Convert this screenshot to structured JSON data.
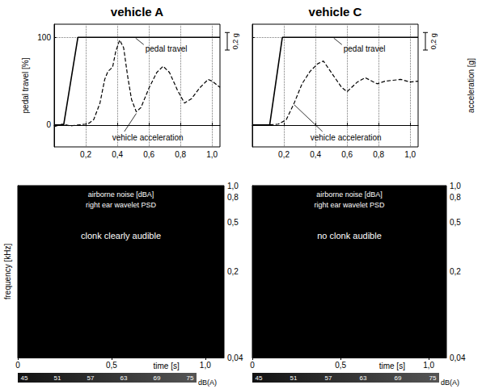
{
  "chart_data": [
    {
      "type": "line",
      "title": "vehicle A",
      "ylabel": "pedal travel [%]",
      "xlim": [
        0,
        1.05
      ],
      "xticks": [
        {
          "value": 0.2,
          "label": "0,2"
        },
        {
          "value": 0.4,
          "label": "0,4"
        },
        {
          "value": 0.6,
          "label": "0,6"
        },
        {
          "value": 0.8,
          "label": "0,8"
        },
        {
          "value": 1,
          "label": "1,0"
        }
      ],
      "ylim": [
        -25,
        115
      ],
      "yticks": [
        0,
        100
      ],
      "y2lim": [
        -0.25,
        1.15
      ],
      "y2ticks": [],
      "grid": true,
      "scale_bar": {
        "value": 0.2,
        "label": "0,2 g"
      },
      "series": [
        {
          "name": "pedal travel",
          "color": "#000000",
          "line_style": "solid",
          "x": [
            0,
            0.06,
            0.15,
            1.05
          ],
          "values": [
            0,
            0,
            100,
            100
          ]
        },
        {
          "name": "vehicle acceleration",
          "axis": "y2",
          "color": "#000000",
          "line_style": "dashed",
          "x": [
            0,
            0.05,
            0.1,
            0.15,
            0.2,
            0.22,
            0.25,
            0.29,
            0.32,
            0.34,
            0.37,
            0.39,
            0.415,
            0.44,
            0.465,
            0.49,
            0.52,
            0.55,
            0.6,
            0.65,
            0.69,
            0.73,
            0.78,
            0.825,
            0.87,
            0.92,
            0.975,
            1.0,
            1.05
          ],
          "values": [
            -0.02,
            0.01,
            -0.01,
            0.0,
            0.01,
            0.02,
            0.06,
            0.25,
            0.52,
            0.61,
            0.66,
            0.84,
            0.97,
            0.88,
            0.56,
            0.29,
            0.15,
            0.2,
            0.42,
            0.6,
            0.67,
            0.6,
            0.4,
            0.25,
            0.3,
            0.42,
            0.52,
            0.5,
            0.43
          ]
        }
      ]
    },
    {
      "type": "line",
      "title": "vehicle C",
      "y2label": "acceleration [g]",
      "xlim": [
        0,
        1.05
      ],
      "xticks": [
        {
          "value": 0.2,
          "label": "0,2"
        },
        {
          "value": 0.4,
          "label": "0,4"
        },
        {
          "value": 0.6,
          "label": "0,6"
        },
        {
          "value": 0.8,
          "label": "0,8"
        },
        {
          "value": 1,
          "label": "1,0"
        }
      ],
      "ylim": [
        -25,
        115
      ],
      "yticks": [
        0,
        100
      ],
      "y2lim": [
        -0.25,
        1.15
      ],
      "y2ticks": [],
      "grid": true,
      "tick_labels": "x",
      "scale_bar": {
        "value": 0.2,
        "label": "0,2 g"
      },
      "series": [
        {
          "name": "pedal travel",
          "color": "#000000",
          "line_style": "solid",
          "x": [
            0,
            0.11,
            0.19,
            1.05
          ],
          "values": [
            0,
            0,
            100,
            100
          ]
        },
        {
          "name": "vehicle acceleration",
          "axis": "y2",
          "color": "#000000",
          "line_style": "dashed",
          "x": [
            0,
            0.1,
            0.165,
            0.215,
            0.265,
            0.315,
            0.365,
            0.415,
            0.45,
            0.515,
            0.565,
            0.6,
            0.665,
            0.715,
            0.79,
            0.84,
            0.94,
            1.0,
            1.05
          ],
          "values": [
            0,
            0,
            0.01,
            0.06,
            0.25,
            0.47,
            0.61,
            0.7,
            0.73,
            0.56,
            0.43,
            0.38,
            0.49,
            0.54,
            0.47,
            0.5,
            0.52,
            0.49,
            0.5
          ]
        }
      ]
    },
    {
      "type": "spectrogram",
      "color": "#000000",
      "ylabel": "frequency [kHz]",
      "xlabel": "time [s]",
      "log": "y",
      "xlim": [
        0,
        1.1
      ],
      "xticks": [
        0,
        {
          "value": 0.5,
          "label": "0,5"
        },
        {
          "value": 1,
          "label": "1,0"
        }
      ],
      "ylim": [
        0.04,
        1
      ],
      "yticks": [
        {
          "value": 0.04,
          "label": "0,04"
        },
        {
          "value": 0.2,
          "label": "0,2"
        },
        {
          "value": 0.5,
          "label": "0,5"
        },
        {
          "value": 0.8,
          "label": "0,8"
        },
        {
          "value": 1,
          "label": "1,0"
        }
      ],
      "annotations": [
        "airborne noise [dBA]",
        "right ear wavelet PSD",
        "clonk clearly audible"
      ],
      "colorbar": {
        "range": [
          45,
          75
        ],
        "ticks": [
          45,
          51,
          57,
          63,
          69,
          75
        ],
        "label": "dB(A)"
      }
    },
    {
      "type": "spectrogram",
      "color": "#000000",
      "xlabel": "time [s]",
      "log": "y",
      "xlim": [
        0,
        1.1
      ],
      "xticks": [
        0,
        {
          "value": 0.5,
          "label": "0,5"
        },
        {
          "value": 1,
          "label": "1,0"
        }
      ],
      "ylim": [
        0.04,
        1
      ],
      "yticks": [
        {
          "value": 0.04,
          "label": "0,04"
        },
        {
          "value": 0.2,
          "label": "0,2"
        },
        {
          "value": 0.5,
          "label": "0,5"
        },
        {
          "value": 0.8,
          "label": "0,8"
        },
        {
          "value": 1,
          "label": "1,0"
        }
      ],
      "annotations": [
        "airborne noise [dBA]",
        "right ear wavelet PSD",
        "no clonk audible"
      ],
      "colorbar": {
        "range": [
          45,
          75
        ],
        "ticks": [
          45,
          51,
          57,
          63,
          69,
          75
        ],
        "label": "dB(A)"
      }
    }
  ]
}
